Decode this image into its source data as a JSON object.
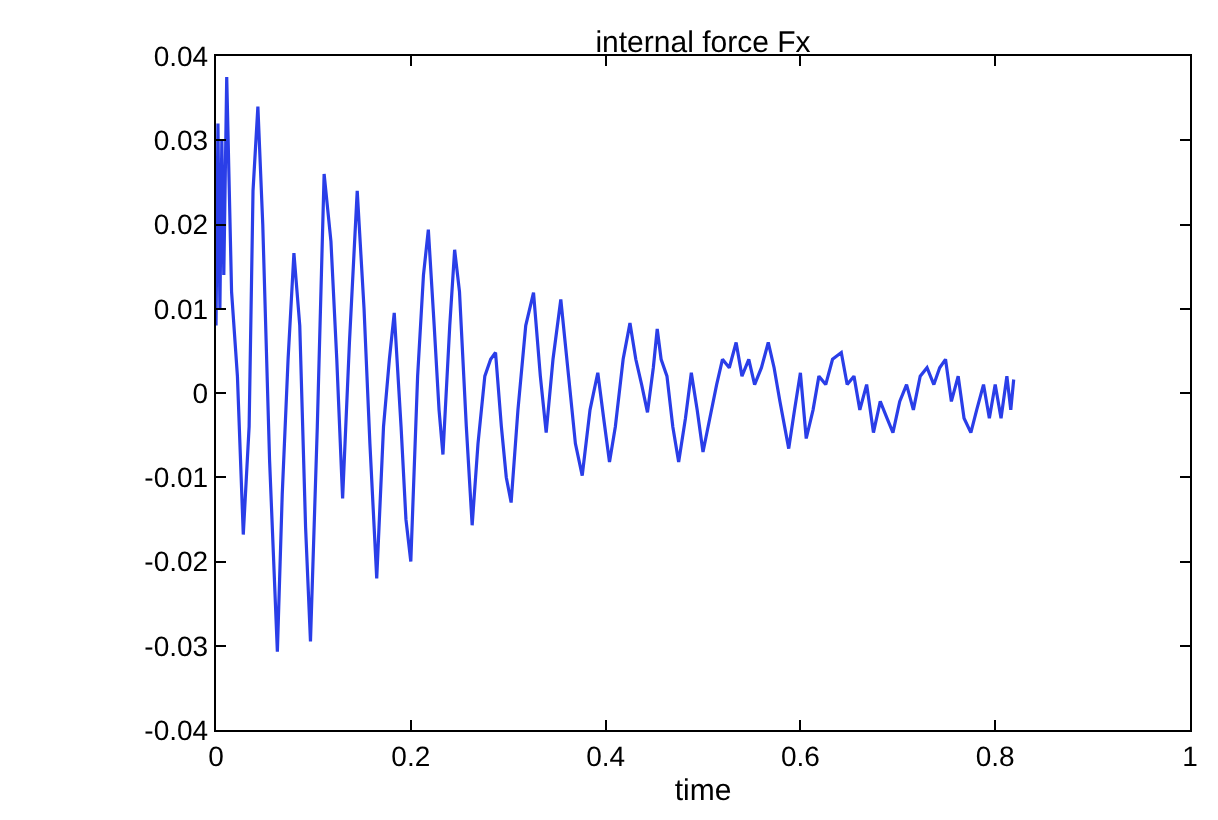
{
  "chart_data": {
    "type": "line",
    "title": "internal force Fx",
    "xlabel": "time",
    "x": [
      0,
      0.002,
      0.004,
      0.006,
      0.008,
      0.011,
      0.016,
      0.022,
      0.028,
      0.034,
      0.038,
      0.043,
      0.048,
      0.055,
      0.063,
      0.068,
      0.074,
      0.08,
      0.086,
      0.092,
      0.097,
      0.104,
      0.111,
      0.118,
      0.124,
      0.13,
      0.137,
      0.145,
      0.152,
      0.158,
      0.165,
      0.172,
      0.178,
      0.183,
      0.19,
      0.195,
      0.2,
      0.207,
      0.213,
      0.218,
      0.224,
      0.229,
      0.233,
      0.24,
      0.245,
      0.25,
      0.257,
      0.263,
      0.269,
      0.276,
      0.282,
      0.287,
      0.293,
      0.298,
      0.303,
      0.31,
      0.318,
      0.326,
      0.333,
      0.339,
      0.346,
      0.354,
      0.362,
      0.369,
      0.376,
      0.384,
      0.392,
      0.398,
      0.404,
      0.41,
      0.418,
      0.425,
      0.431,
      0.437,
      0.443,
      0.449,
      0.453,
      0.457,
      0.463,
      0.469,
      0.475,
      0.482,
      0.488,
      0.494,
      0.5,
      0.507,
      0.514,
      0.52,
      0.527,
      0.534,
      0.54,
      0.547,
      0.553,
      0.56,
      0.567,
      0.573,
      0.579,
      0.588,
      0.594,
      0.6,
      0.606,
      0.613,
      0.619,
      0.626,
      0.633,
      0.642,
      0.648,
      0.655,
      0.661,
      0.668,
      0.675,
      0.682,
      0.689,
      0.695,
      0.702,
      0.709,
      0.716,
      0.723,
      0.73,
      0.737,
      0.743,
      0.749,
      0.755,
      0.762,
      0.768,
      0.775,
      0.781,
      0.788,
      0.794,
      0.8,
      0.806,
      0.812,
      0.816,
      0.819
    ],
    "values": [
      0.008,
      0.032,
      0.01,
      0.03,
      0.014,
      0.0375,
      0.012,
      0.002,
      -0.0168,
      -0.004,
      0.024,
      0.034,
      0.02,
      -0.008,
      -0.0307,
      -0.012,
      0.004,
      0.0166,
      0.008,
      -0.016,
      -0.0295,
      -0.004,
      0.026,
      0.018,
      0.004,
      -0.0125,
      0.006,
      0.024,
      0.01,
      -0.006,
      -0.022,
      -0.004,
      0.004,
      0.0095,
      -0.004,
      -0.015,
      -0.02,
      0.002,
      0.014,
      0.0194,
      0.008,
      -0.002,
      -0.0073,
      0.008,
      0.017,
      0.012,
      -0.004,
      -0.0157,
      -0.006,
      0.002,
      0.004,
      0.0048,
      -0.004,
      -0.01,
      -0.013,
      -0.002,
      0.008,
      0.0119,
      0.002,
      -0.0047,
      0.004,
      0.0111,
      0.002,
      -0.006,
      -0.0098,
      -0.002,
      0.0024,
      -0.003,
      -0.0082,
      -0.004,
      0.004,
      0.0083,
      0.004,
      0.001,
      -0.0023,
      0.003,
      0.0076,
      0.004,
      0.002,
      -0.004,
      -0.0082,
      -0.003,
      0.0024,
      -0.002,
      -0.007,
      -0.003,
      0.001,
      0.004,
      0.003,
      0.006,
      0.002,
      0.004,
      0.001,
      0.003,
      0.006,
      0.003,
      -0.001,
      -0.0066,
      -0.002,
      0.0024,
      -0.0054,
      -0.002,
      0.002,
      0.001,
      0.004,
      0.0048,
      0.001,
      0.002,
      -0.002,
      0.001,
      -0.0047,
      -0.001,
      -0.003,
      -0.0047,
      -0.001,
      0.001,
      -0.002,
      0.002,
      0.003,
      0.001,
      0.003,
      0.004,
      -0.001,
      0.002,
      -0.003,
      -0.0047,
      -0.002,
      0.001,
      -0.003,
      0.001,
      -0.003,
      0.002,
      -0.002,
      0.0016
    ],
    "color": "#2a3ee8",
    "xlim": [
      0,
      1
    ],
    "xticks": [
      0,
      0.2,
      0.4,
      0.6,
      0.8,
      1
    ],
    "ylim": [
      -0.04,
      0.04
    ],
    "yticks": [
      -0.04,
      -0.03,
      -0.02,
      -0.01,
      0,
      0.01,
      0.02,
      0.03,
      0.04
    ]
  }
}
